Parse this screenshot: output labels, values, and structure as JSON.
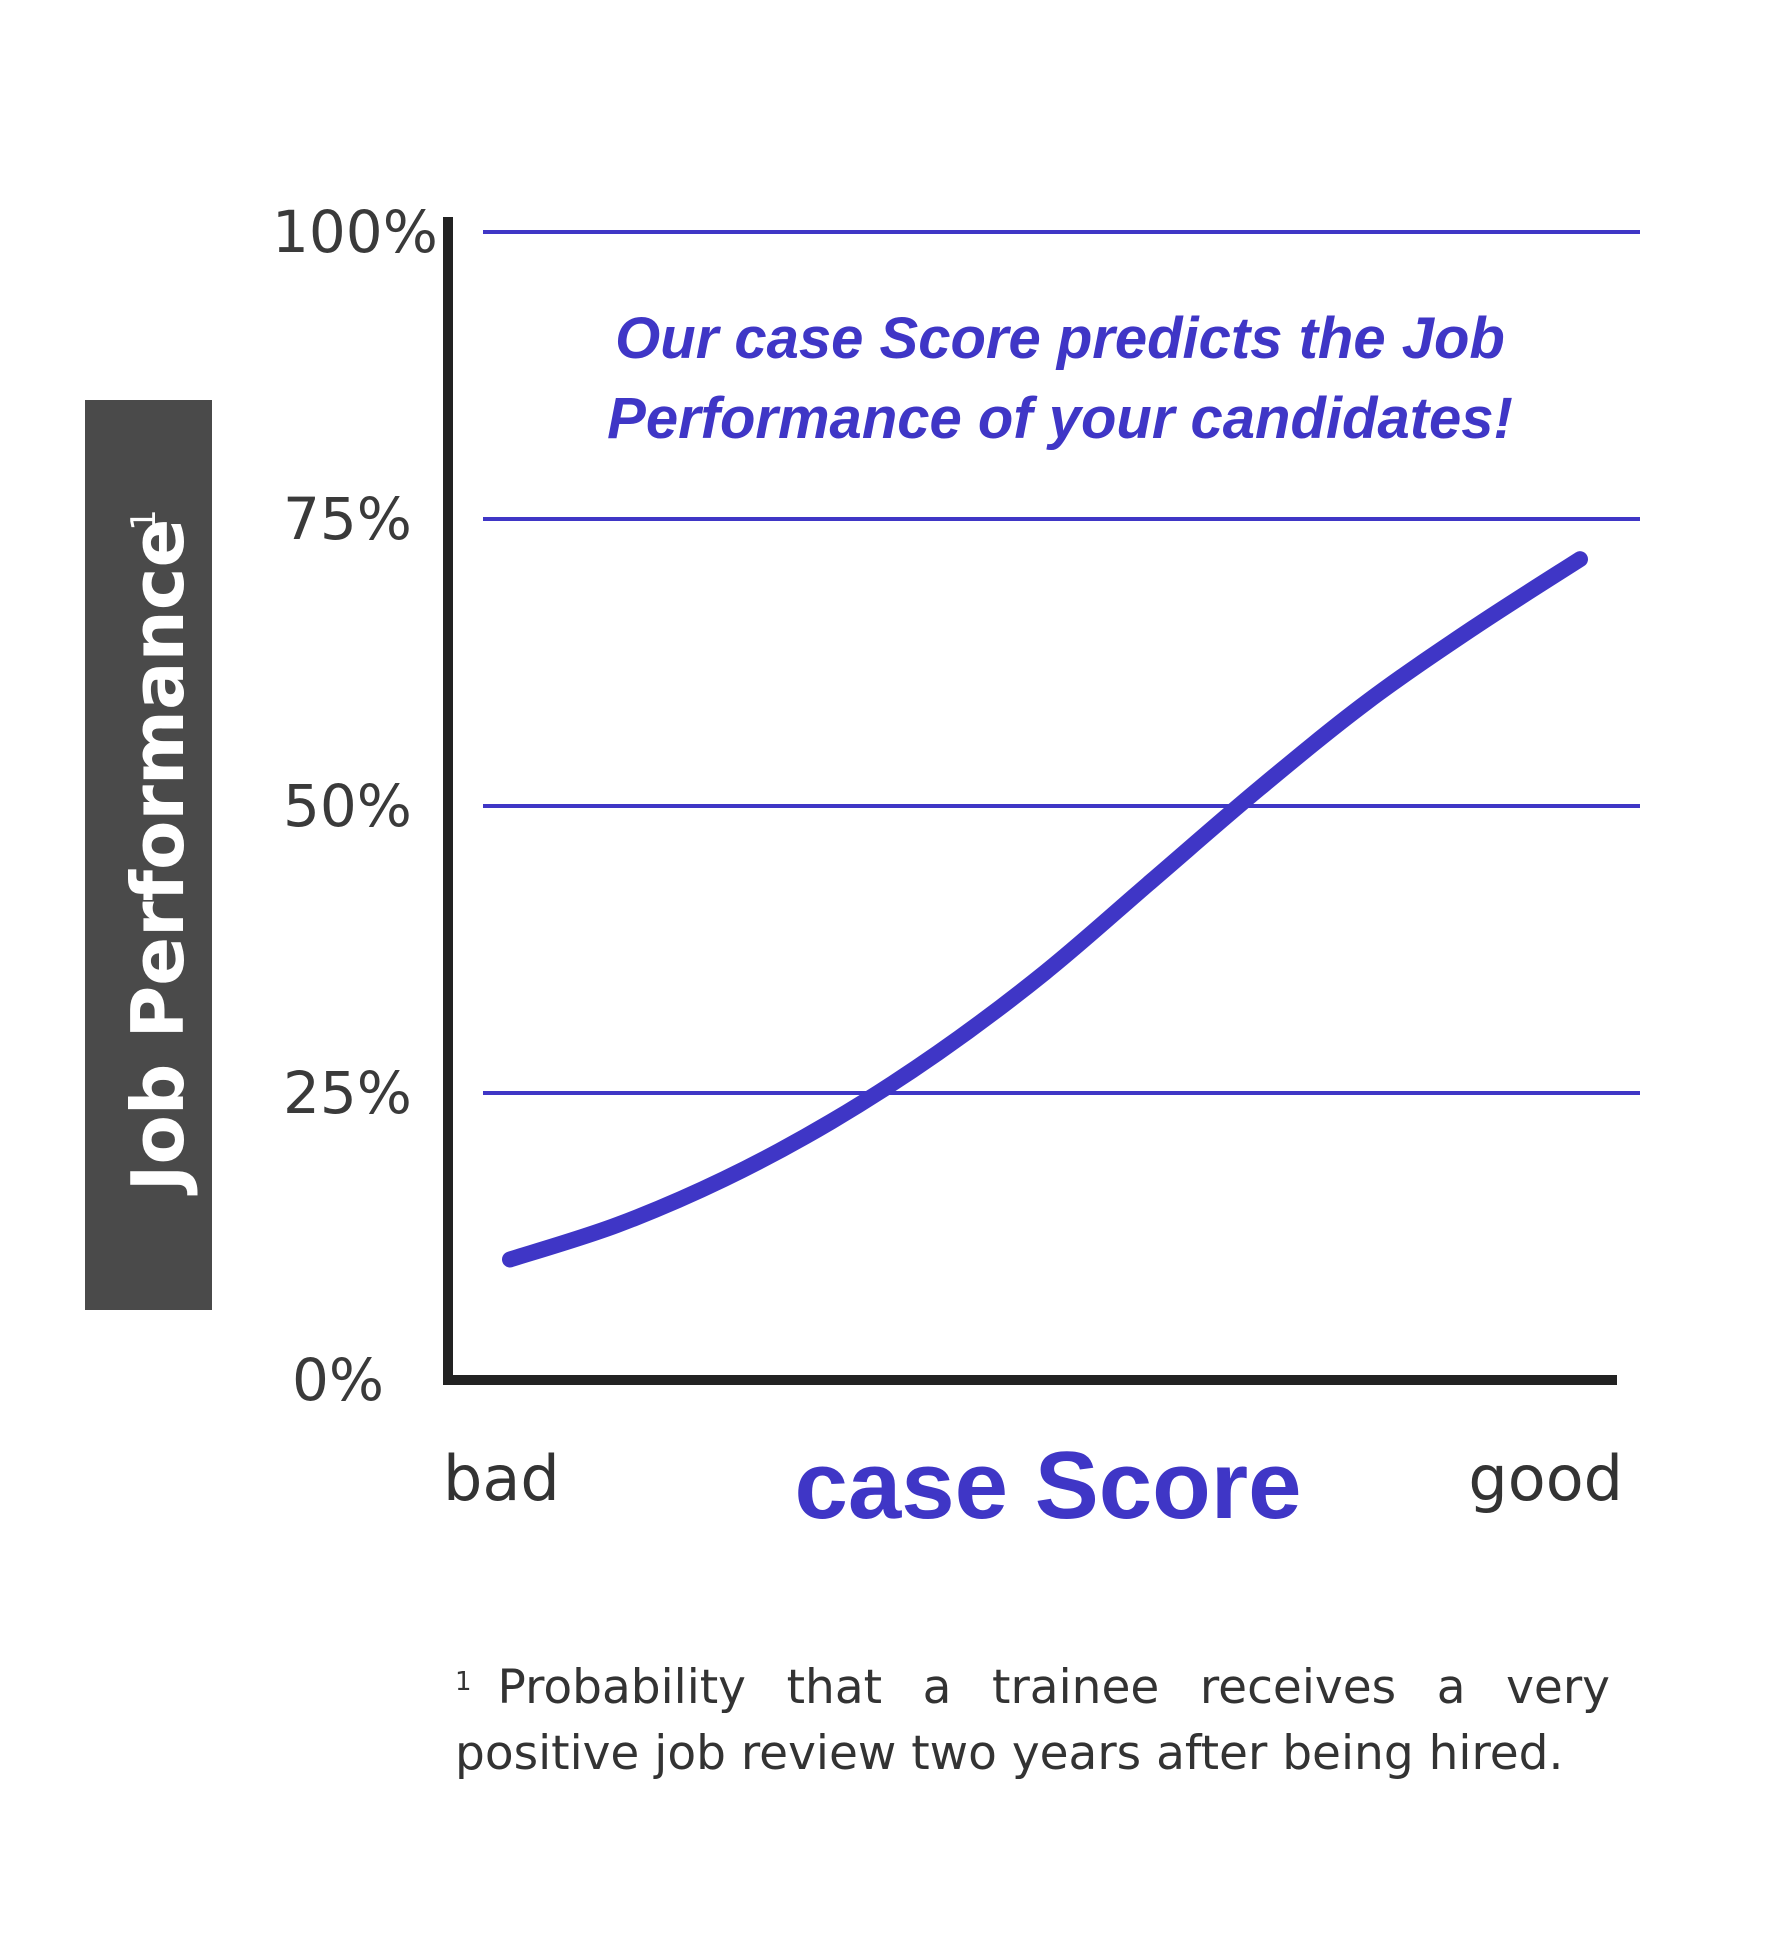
{
  "chart_data": {
    "type": "line",
    "title": "",
    "ylabel": "Job Performance",
    "ylabel_footnote_marker": "1",
    "xlabel": "case Score",
    "x_start_label": "bad",
    "x_end_label": "good",
    "yticks": [
      "0%",
      "25%",
      "50%",
      "75%",
      "100%"
    ],
    "ylim": [
      0,
      100
    ],
    "xlim": [
      0,
      1
    ],
    "grid": true,
    "annotation": [
      "Our case Score predicts the Job",
      "Performance of your candidates!"
    ],
    "series": [
      {
        "x": [
          0.0,
          0.1,
          0.2,
          0.3,
          0.4,
          0.5,
          0.6,
          0.7,
          0.8,
          0.9,
          1.0
        ],
        "values": [
          10.5,
          13.5,
          17.5,
          22.5,
          28.5,
          35.5,
          43.5,
          51.5,
          59,
          65.5,
          71.5
        ]
      }
    ],
    "colors": {
      "series": "#3f36c6",
      "grid": "#3f36c6",
      "axis": "#222222",
      "ylabel_box": "#4a4a4a"
    }
  },
  "footnote": {
    "marker": "1",
    "text": "Probability that a trainee receives a very positive job review two years after being hired."
  }
}
